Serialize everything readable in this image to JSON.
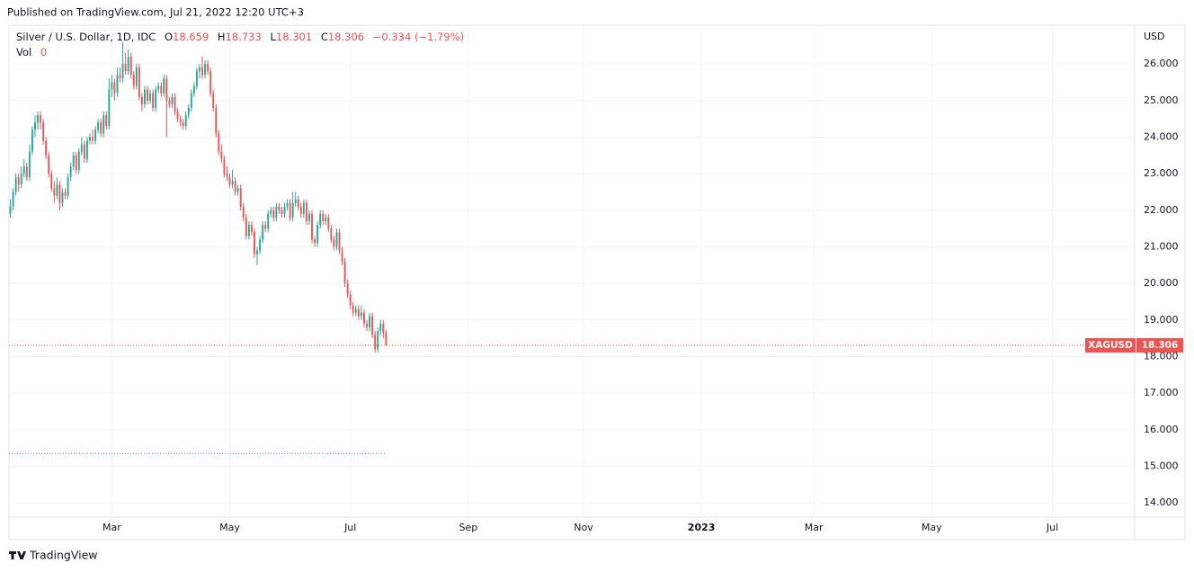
{
  "published": "Published on TradingView.com, Jul 21, 2022 12:20 UTC+3",
  "footer": "TradingView",
  "chart_data": {
    "type": "candlestick",
    "symbol_title": "Silver / U.S. Dollar, 1D, IDC",
    "legend_labels": {
      "open": "O",
      "high": "H",
      "low": "L",
      "close": "C"
    },
    "change": "−0.334 (−1.79%)",
    "volume_label": "Vol",
    "volume_value": 0,
    "currency": "USD",
    "ticker": "XAGUSD",
    "up_color": "#26a69a",
    "down_color": "#ef5350",
    "grid": true,
    "ylim": [
      13.61,
      27.06
    ],
    "yticks": [
      {
        "value": 14,
        "label": "14.000"
      },
      {
        "value": 15,
        "label": "15.000"
      },
      {
        "value": 16,
        "label": "16.000"
      },
      {
        "value": 17,
        "label": "17.000"
      },
      {
        "value": 18,
        "label": "18.000"
      },
      {
        "value": 19,
        "label": "19.000"
      },
      {
        "value": 20,
        "label": "20.000"
      },
      {
        "value": 21,
        "label": "21.000"
      },
      {
        "value": 22,
        "label": "22.000"
      },
      {
        "value": 23,
        "label": "23.000"
      },
      {
        "value": 24,
        "label": "24.000"
      },
      {
        "value": 25,
        "label": "25.000"
      },
      {
        "value": 26,
        "label": "26.000"
      }
    ],
    "xlim": [
      -0.5,
      410
    ],
    "xticks": [
      {
        "value": 37,
        "label": "Mar"
      },
      {
        "value": 80,
        "label": "May"
      },
      {
        "value": 124,
        "label": "Jul"
      },
      {
        "value": 167,
        "label": "Sep"
      },
      {
        "value": 209,
        "label": "Nov"
      },
      {
        "value": 252,
        "label": "2023"
      },
      {
        "value": 293,
        "label": "Mar"
      },
      {
        "value": 336,
        "label": "May"
      },
      {
        "value": 380,
        "label": "Jul"
      }
    ],
    "reference_line": {
      "value": 15.35,
      "color": "#26a69a"
    },
    "ohlc": [
      [
        21.9,
        22.3,
        21.8,
        22.1
      ],
      [
        22.1,
        22.6,
        22.0,
        22.5
      ],
      [
        22.5,
        23.0,
        22.4,
        22.9
      ],
      [
        22.9,
        23.0,
        22.5,
        22.7
      ],
      [
        22.7,
        23.2,
        22.6,
        23.0
      ],
      [
        23.0,
        23.4,
        22.9,
        23.2
      ],
      [
        23.2,
        23.3,
        22.8,
        22.9
      ],
      [
        22.9,
        23.8,
        22.8,
        23.6
      ],
      [
        23.6,
        24.3,
        23.5,
        24.2
      ],
      [
        24.2,
        24.6,
        24.0,
        24.4
      ],
      [
        24.4,
        24.7,
        24.2,
        24.6
      ],
      [
        24.6,
        24.7,
        24.2,
        24.4
      ],
      [
        24.4,
        24.5,
        23.8,
        23.9
      ],
      [
        23.9,
        24.0,
        23.4,
        23.5
      ],
      [
        23.5,
        23.6,
        22.9,
        23.0
      ],
      [
        23.0,
        23.1,
        22.5,
        22.6
      ],
      [
        22.6,
        22.8,
        22.2,
        22.4
      ],
      [
        22.4,
        22.9,
        22.3,
        22.7
      ],
      [
        22.7,
        22.8,
        22.0,
        22.2
      ],
      [
        22.2,
        22.6,
        22.1,
        22.5
      ],
      [
        22.5,
        22.6,
        22.3,
        22.4
      ],
      [
        22.4,
        23.0,
        22.3,
        22.9
      ],
      [
        22.9,
        23.3,
        22.8,
        23.2
      ],
      [
        23.2,
        23.6,
        23.1,
        23.5
      ],
      [
        23.5,
        23.6,
        23.0,
        23.1
      ],
      [
        23.1,
        23.7,
        23.0,
        23.6
      ],
      [
        23.6,
        24.0,
        23.5,
        23.8
      ],
      [
        23.8,
        23.9,
        23.3,
        23.4
      ],
      [
        23.4,
        24.0,
        23.3,
        23.9
      ],
      [
        23.9,
        24.1,
        23.8,
        24.0
      ],
      [
        24.0,
        24.2,
        23.8,
        23.9
      ],
      [
        23.9,
        24.3,
        23.8,
        24.2
      ],
      [
        24.2,
        24.5,
        24.1,
        24.4
      ],
      [
        24.4,
        24.5,
        24.0,
        24.1
      ],
      [
        24.1,
        24.7,
        24.0,
        24.6
      ],
      [
        24.6,
        24.7,
        24.2,
        24.3
      ],
      [
        24.3,
        25.6,
        24.2,
        25.3
      ],
      [
        25.3,
        25.7,
        25.1,
        25.5
      ],
      [
        25.5,
        25.6,
        25.0,
        25.2
      ],
      [
        25.2,
        25.9,
        25.1,
        25.7
      ],
      [
        25.7,
        25.9,
        25.5,
        25.6
      ],
      [
        25.6,
        26.6,
        25.5,
        26.0
      ],
      [
        26.0,
        26.3,
        25.7,
        25.8
      ],
      [
        25.8,
        26.4,
        25.7,
        26.2
      ],
      [
        26.2,
        26.3,
        25.6,
        25.7
      ],
      [
        25.7,
        25.8,
        25.3,
        25.4
      ],
      [
        25.4,
        26.0,
        25.3,
        25.9
      ],
      [
        25.9,
        26.0,
        25.0,
        25.1
      ],
      [
        25.1,
        25.2,
        24.7,
        24.9
      ],
      [
        24.9,
        25.4,
        24.8,
        25.3
      ],
      [
        25.3,
        25.4,
        24.9,
        25.0
      ],
      [
        25.0,
        25.3,
        24.9,
        25.2
      ],
      [
        25.2,
        25.3,
        24.7,
        24.8
      ],
      [
        24.8,
        25.4,
        24.7,
        25.3
      ],
      [
        25.3,
        25.5,
        25.2,
        25.4
      ],
      [
        25.4,
        25.5,
        25.1,
        25.2
      ],
      [
        25.2,
        25.7,
        25.1,
        25.6
      ],
      [
        25.6,
        25.7,
        24.0,
        25.0
      ],
      [
        25.0,
        25.1,
        24.8,
        24.9
      ],
      [
        24.9,
        25.2,
        24.8,
        25.1
      ],
      [
        25.1,
        25.2,
        24.6,
        24.7
      ],
      [
        24.7,
        24.8,
        24.4,
        24.5
      ],
      [
        24.5,
        24.6,
        24.3,
        24.4
      ],
      [
        24.4,
        24.5,
        24.2,
        24.3
      ],
      [
        24.3,
        24.7,
        24.2,
        24.6
      ],
      [
        24.6,
        24.9,
        24.5,
        24.8
      ],
      [
        24.8,
        25.3,
        24.7,
        25.2
      ],
      [
        25.2,
        25.5,
        25.1,
        25.4
      ],
      [
        25.4,
        25.9,
        25.3,
        25.8
      ],
      [
        25.8,
        26.0,
        25.6,
        25.9
      ],
      [
        25.9,
        26.2,
        25.6,
        25.7
      ],
      [
        25.7,
        26.1,
        25.6,
        26.0
      ],
      [
        26.0,
        26.1,
        25.7,
        25.8
      ],
      [
        25.8,
        25.9,
        25.1,
        25.2
      ],
      [
        25.2,
        25.3,
        24.7,
        24.8
      ],
      [
        24.8,
        24.9,
        24.0,
        24.1
      ],
      [
        24.1,
        24.2,
        23.5,
        23.6
      ],
      [
        23.6,
        23.8,
        23.3,
        23.4
      ],
      [
        23.4,
        23.5,
        22.9,
        23.0
      ],
      [
        23.0,
        23.2,
        22.8,
        22.9
      ],
      [
        22.9,
        23.0,
        22.6,
        22.7
      ],
      [
        22.7,
        23.1,
        22.6,
        22.8
      ],
      [
        22.8,
        22.9,
        22.4,
        22.5
      ],
      [
        22.5,
        22.7,
        22.4,
        22.6
      ],
      [
        22.6,
        22.7,
        22.0,
        22.1
      ],
      [
        22.1,
        22.2,
        21.7,
        21.8
      ],
      [
        21.8,
        21.9,
        21.2,
        21.3
      ],
      [
        21.3,
        21.7,
        21.2,
        21.6
      ],
      [
        21.6,
        21.7,
        21.3,
        21.4
      ],
      [
        21.4,
        21.5,
        20.7,
        20.8
      ],
      [
        20.8,
        21.0,
        20.5,
        20.9
      ],
      [
        20.9,
        21.3,
        20.8,
        21.2
      ],
      [
        21.2,
        21.7,
        21.1,
        21.6
      ],
      [
        21.6,
        21.7,
        21.4,
        21.5
      ],
      [
        21.5,
        22.0,
        21.4,
        21.9
      ],
      [
        21.9,
        22.1,
        21.8,
        22.0
      ],
      [
        22.0,
        22.1,
        21.7,
        21.8
      ],
      [
        21.8,
        22.2,
        21.7,
        22.1
      ],
      [
        22.1,
        22.2,
        21.9,
        22.0
      ],
      [
        22.0,
        22.1,
        21.8,
        21.9
      ],
      [
        21.9,
        22.2,
        21.8,
        22.1
      ],
      [
        22.1,
        22.3,
        22.0,
        22.2
      ],
      [
        22.2,
        22.3,
        21.7,
        21.8
      ],
      [
        21.8,
        22.5,
        21.7,
        22.2
      ],
      [
        22.2,
        22.5,
        22.1,
        22.3
      ],
      [
        22.3,
        22.4,
        22.0,
        22.1
      ],
      [
        22.1,
        22.2,
        21.8,
        21.9
      ],
      [
        21.9,
        22.3,
        21.8,
        22.2
      ],
      [
        22.2,
        22.3,
        21.6,
        21.7
      ],
      [
        21.7,
        22.0,
        21.6,
        21.9
      ],
      [
        21.9,
        22.0,
        21.1,
        21.2
      ],
      [
        21.2,
        21.3,
        21.0,
        21.1
      ],
      [
        21.1,
        21.7,
        21.0,
        21.6
      ],
      [
        21.6,
        22.0,
        21.5,
        21.9
      ],
      [
        21.9,
        22.0,
        21.6,
        21.7
      ],
      [
        21.7,
        21.9,
        21.6,
        21.8
      ],
      [
        21.8,
        21.9,
        21.4,
        21.5
      ],
      [
        21.5,
        21.6,
        21.1,
        21.2
      ],
      [
        21.2,
        21.3,
        20.9,
        21.0
      ],
      [
        21.0,
        21.5,
        20.9,
        21.4
      ],
      [
        21.4,
        21.5,
        20.8,
        20.9
      ],
      [
        20.9,
        21.0,
        20.5,
        20.6
      ],
      [
        20.6,
        20.7,
        19.9,
        20.0
      ],
      [
        20.0,
        20.1,
        19.6,
        19.7
      ],
      [
        19.7,
        19.8,
        19.3,
        19.4
      ],
      [
        19.4,
        19.5,
        19.1,
        19.2
      ],
      [
        19.2,
        19.4,
        19.1,
        19.3
      ],
      [
        19.3,
        19.4,
        19.0,
        19.1
      ],
      [
        19.1,
        19.4,
        19.0,
        19.2
      ],
      [
        19.2,
        19.3,
        18.8,
        18.9
      ],
      [
        18.9,
        19.0,
        18.7,
        18.8
      ],
      [
        18.8,
        19.2,
        18.7,
        19.1
      ],
      [
        19.1,
        19.2,
        18.5,
        18.6
      ],
      [
        18.6,
        18.7,
        18.1,
        18.2
      ],
      [
        18.2,
        18.8,
        18.1,
        18.7
      ],
      [
        18.7,
        19.0,
        18.6,
        18.9
      ],
      [
        18.9,
        19.0,
        18.5,
        18.64
      ],
      [
        18.659,
        18.733,
        18.301,
        18.306
      ]
    ]
  }
}
